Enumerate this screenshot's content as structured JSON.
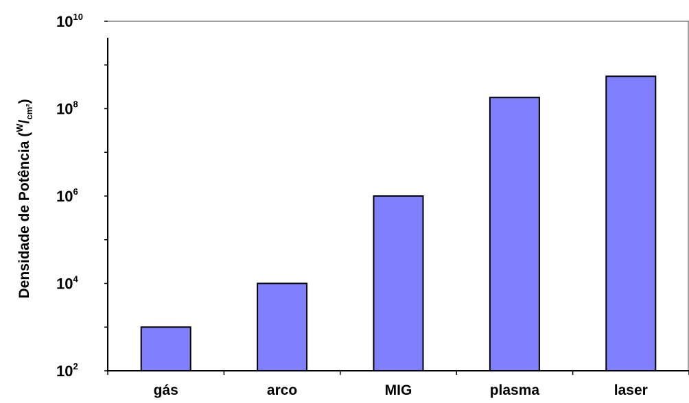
{
  "chart_data": {
    "type": "bar",
    "scale": "log10",
    "categories": [
      "gás",
      "arco",
      "MIG",
      "plasma",
      "laser"
    ],
    "values": [
      1000,
      10000,
      1000000,
      180000000,
      550000000
    ],
    "ylim": [
      100,
      10000000000
    ],
    "yticks": [
      {
        "base": "10",
        "exp": "10"
      },
      {
        "base": "10",
        "exp": "8"
      },
      {
        "base": "10",
        "exp": "6"
      },
      {
        "base": "10",
        "exp": "4"
      },
      {
        "base": "10",
        "exp": "2"
      }
    ],
    "ylabel": {
      "main": "Densidade de Potência (",
      "sup": "W",
      "slash": "/",
      "sub": "cm²",
      "close": ")"
    },
    "grid": false,
    "legend": "none",
    "colors": {
      "bar_fill": "#8080ff",
      "bar_stroke": "#000000",
      "axis": "#000000",
      "frame": "#808080"
    }
  }
}
